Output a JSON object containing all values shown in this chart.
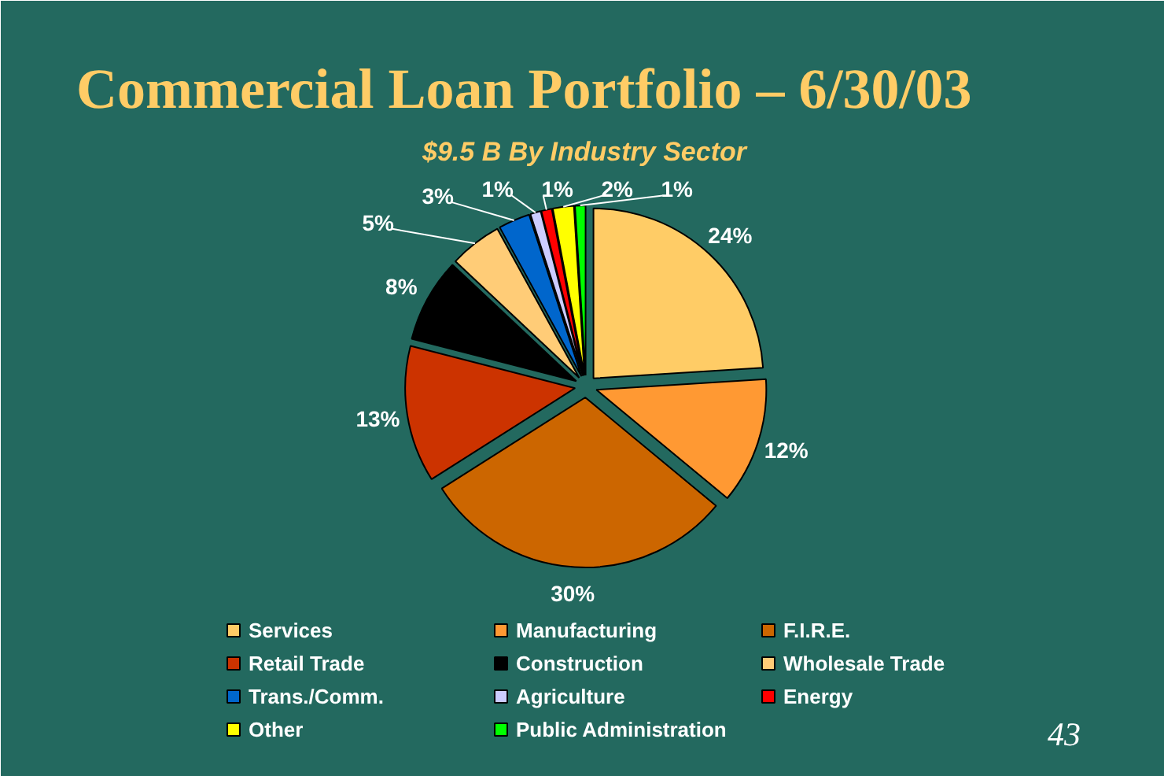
{
  "chart_data": {
    "type": "pie",
    "title": "Commercial Loan Portfolio – 6/30/03",
    "subtitle": "$9.5 B By Industry Sector",
    "categories": [
      "Services",
      "Manufacturing",
      "F.I.R.E.",
      "Retail Trade",
      "Construction",
      "Wholesale Trade",
      "Trans./Comm.",
      "Agriculture",
      "Energy",
      "Other",
      "Public Administration"
    ],
    "values": [
      24,
      12,
      30,
      13,
      8,
      5,
      3,
      1,
      1,
      2,
      1
    ],
    "value_labels": [
      "24%",
      "12%",
      "30%",
      "13%",
      "8%",
      "5%",
      "3%",
      "1%",
      "1%",
      "2%",
      "1%"
    ],
    "colors": [
      "#ffcc66",
      "#ff9933",
      "#cc6600",
      "#cc3300",
      "#000000",
      "#ffcc77",
      "#0066cc",
      "#ccccff",
      "#ff0000",
      "#ffff00",
      "#00ff00"
    ],
    "legend": "bottom",
    "annotations": [
      "43"
    ]
  }
}
